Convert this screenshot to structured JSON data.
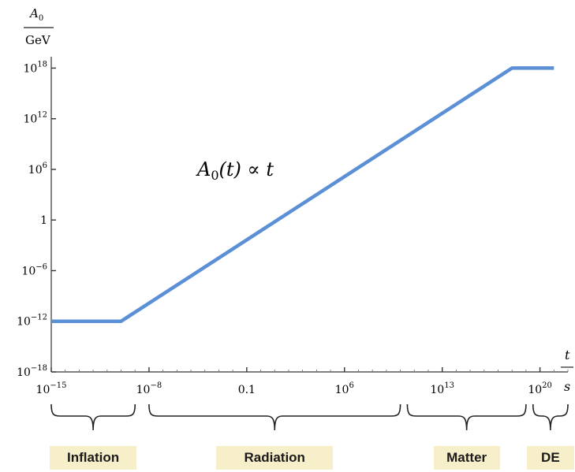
{
  "chart_data": {
    "type": "line",
    "y_label": {
      "num": "A",
      "sub": "0",
      "den": "GeV"
    },
    "x_label": {
      "num": "t",
      "den": "s"
    },
    "x_scale": "log",
    "y_scale": "log",
    "x_range_log10": [
      -15,
      22
    ],
    "y_range_log10": [
      -18,
      20
    ],
    "x_ticks": [
      {
        "log10": -15,
        "base": "10",
        "exp": "−15"
      },
      {
        "log10": -8,
        "base": "10",
        "exp": "−8"
      },
      {
        "log10": -1,
        "base": "0.1",
        "exp": ""
      },
      {
        "log10": 6,
        "base": "10",
        "exp": "6"
      },
      {
        "log10": 13,
        "base": "10",
        "exp": "13"
      },
      {
        "log10": 20,
        "base": "10",
        "exp": "20"
      }
    ],
    "y_ticks": [
      {
        "log10": -18,
        "base": "10",
        "exp": "−18"
      },
      {
        "log10": -12,
        "base": "10",
        "exp": "−12"
      },
      {
        "log10": -6,
        "base": "10",
        "exp": "−6"
      },
      {
        "log10": 0,
        "base": "1",
        "exp": ""
      },
      {
        "log10": 6,
        "base": "10",
        "exp": "6"
      },
      {
        "log10": 12,
        "base": "10",
        "exp": "12"
      },
      {
        "log10": 18,
        "base": "10",
        "exp": "18"
      }
    ],
    "series": [
      {
        "color": "#5b8fd6",
        "points_log10": [
          [
            -15,
            -12
          ],
          [
            -10,
            -12
          ],
          [
            18,
            18
          ],
          [
            21,
            18
          ]
        ]
      }
    ],
    "annotation": {
      "main": "A",
      "sub": "0",
      "rest": "(t) ∝ t",
      "x_log10": 5,
      "y_log10": 6
    },
    "eras": [
      {
        "label": "Inflation",
        "from_log10": -15,
        "to_log10": -9
      },
      {
        "label": "Radiation",
        "from_log10": -8,
        "to_log10": 10
      },
      {
        "label": "Matter",
        "from_log10": 10.5,
        "to_log10": 19
      },
      {
        "label": "DE",
        "from_log10": 19.5,
        "to_log10": 22
      }
    ],
    "era_box_color": "#f7efc9"
  }
}
